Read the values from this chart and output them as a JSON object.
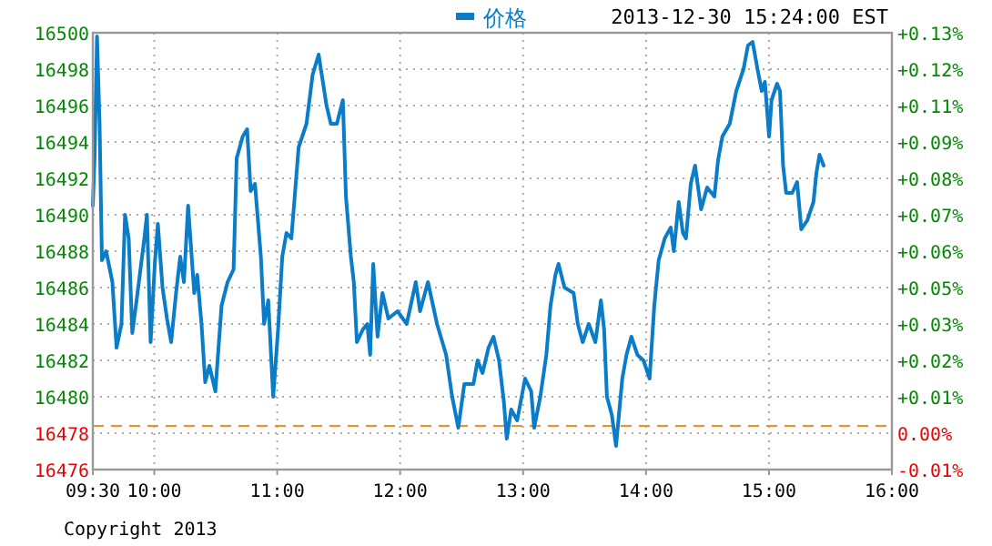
{
  "chart_data": {
    "type": "line",
    "subtitle": "2013-12-30 15:24:00 EST",
    "annotations": [
      "Copyright 2013"
    ],
    "legend": "top",
    "grid": true,
    "line_style": "solid",
    "marker": "none",
    "xlim": [
      9.5,
      16
    ],
    "xticks": [
      {
        "value": 9.5,
        "label": "09:30"
      },
      {
        "value": 10,
        "label": "10:00"
      },
      {
        "value": 11,
        "label": "11:00"
      },
      {
        "value": 12,
        "label": "12:00"
      },
      {
        "value": 13,
        "label": "13:00"
      },
      {
        "value": 14,
        "label": "14:00"
      },
      {
        "value": 15,
        "label": "15:00"
      },
      {
        "value": 16,
        "label": "16:00"
      }
    ],
    "ylim": [
      16476,
      16500
    ],
    "yticks": [
      16476,
      16478,
      16480,
      16482,
      16484,
      16486,
      16488,
      16490,
      16492,
      16494,
      16496,
      16498,
      16500
    ],
    "y2lim": [
      -0.0146,
      0.1311
    ],
    "y2ticks": [
      {
        "value": -0.0146,
        "label": "-0.01%"
      },
      {
        "value": -0.0024,
        "label": "0.00%"
      },
      {
        "value": 0.0097,
        "label": "+0.01%"
      },
      {
        "value": 0.0218,
        "label": "+0.02%"
      },
      {
        "value": 0.034,
        "label": "+0.03%"
      },
      {
        "value": 0.0461,
        "label": "+0.05%"
      },
      {
        "value": 0.0583,
        "label": "+0.06%"
      },
      {
        "value": 0.0704,
        "label": "+0.07%"
      },
      {
        "value": 0.0825,
        "label": "+0.08%"
      },
      {
        "value": 0.0947,
        "label": "+0.09%"
      },
      {
        "value": 0.1068,
        "label": "+0.11%"
      },
      {
        "value": 0.119,
        "label": "+0.12%"
      },
      {
        "value": 0.1311,
        "label": "+0.13%"
      }
    ],
    "ref_lines": [
      {
        "axis": "y",
        "value": 16478.4,
        "color": "#f0901e",
        "line_style": "dashed"
      }
    ],
    "series": [
      {
        "name": "价格",
        "color": "#0a7cc8",
        "x": [
          9.5,
          9.515,
          9.534,
          9.555,
          9.574,
          9.608,
          9.659,
          9.693,
          9.733,
          9.762,
          9.792,
          9.821,
          9.856,
          9.919,
          9.94,
          9.97,
          10.004,
          10.029,
          10.067,
          10.103,
          10.137,
          10.177,
          10.211,
          10.241,
          10.275,
          10.325,
          10.349,
          10.384,
          10.414,
          10.448,
          10.497,
          10.547,
          10.596,
          10.645,
          10.67,
          10.719,
          10.755,
          10.784,
          10.819,
          10.867,
          10.893,
          10.927,
          10.967,
          11.007,
          11.041,
          11.075,
          11.115,
          11.174,
          11.238,
          11.288,
          11.337,
          11.362,
          11.401,
          11.436,
          11.485,
          11.534,
          11.559,
          11.599,
          11.623,
          11.648,
          11.697,
          11.733,
          11.756,
          11.781,
          11.816,
          11.856,
          11.904,
          11.979,
          12.053,
          12.127,
          12.162,
          12.226,
          12.3,
          12.374,
          12.423,
          12.473,
          12.522,
          12.596,
          12.63,
          12.67,
          12.719,
          12.759,
          12.804,
          12.844,
          12.867,
          12.903,
          12.952,
          13.016,
          13.066,
          13.09,
          13.14,
          13.189,
          13.223,
          13.263,
          13.288,
          13.337,
          13.411,
          13.445,
          13.485,
          13.534,
          13.588,
          13.633,
          13.659,
          13.682,
          13.722,
          13.756,
          13.807,
          13.841,
          13.881,
          13.93,
          13.979,
          14.029,
          14.067,
          14.103,
          14.152,
          14.201,
          14.226,
          14.266,
          14.3,
          14.325,
          14.364,
          14.399,
          14.448,
          14.497,
          14.556,
          14.586,
          14.621,
          14.681,
          14.734,
          14.793,
          14.829,
          14.867,
          14.907,
          14.941,
          14.967,
          15.001,
          15.021,
          15.066,
          15.09,
          15.115,
          15.14,
          15.189,
          15.229,
          15.263,
          15.312,
          15.362,
          15.386,
          15.411,
          15.445
        ],
        "values": [
          16490.5,
          16493.3,
          16499.8,
          16495,
          16487.5,
          16488,
          16486.3,
          16482.7,
          16484,
          16490,
          16488.7,
          16483.5,
          16485.3,
          16488.7,
          16490,
          16483,
          16487.3,
          16489.5,
          16486,
          16484.3,
          16483,
          16485.7,
          16487.7,
          16486.3,
          16490.5,
          16485.7,
          16486.7,
          16484,
          16480.8,
          16481.7,
          16480.3,
          16485,
          16486.3,
          16487,
          16493.1,
          16494.3,
          16494.7,
          16491.3,
          16491.7,
          16487.7,
          16484,
          16485.3,
          16480,
          16483.7,
          16487.7,
          16489,
          16488.7,
          16493.7,
          16495,
          16497.7,
          16498.8,
          16497.7,
          16496,
          16495,
          16495,
          16496.3,
          16491,
          16487.7,
          16486.3,
          16483,
          16483.7,
          16484,
          16482.3,
          16487.3,
          16483.3,
          16485.7,
          16484.3,
          16484.7,
          16484,
          16486.3,
          16484.7,
          16486.3,
          16484,
          16482.3,
          16480,
          16478.3,
          16480.7,
          16480.7,
          16482,
          16481.3,
          16482.7,
          16483.3,
          16482,
          16479.7,
          16477.7,
          16479.3,
          16478.7,
          16481,
          16480.3,
          16478.3,
          16480,
          16482.3,
          16485,
          16486.7,
          16487.3,
          16486,
          16485.7,
          16484,
          16483,
          16484,
          16483,
          16485.3,
          16483.7,
          16480,
          16479,
          16477.3,
          16481,
          16482.3,
          16483.3,
          16482.3,
          16482,
          16481,
          16485,
          16487.5,
          16488.7,
          16489.3,
          16488,
          16490.7,
          16489,
          16488.7,
          16491.7,
          16492.7,
          16490.3,
          16491.5,
          16491,
          16493,
          16494.3,
          16495,
          16496.8,
          16498,
          16499.3,
          16499.5,
          16498,
          16496.8,
          16497.3,
          16494.3,
          16496.3,
          16497.2,
          16496.8,
          16492.7,
          16491.2,
          16491.2,
          16491.8,
          16489.2,
          16489.7,
          16490.7,
          16492.3,
          16493.3,
          16492.7
        ]
      }
    ]
  }
}
